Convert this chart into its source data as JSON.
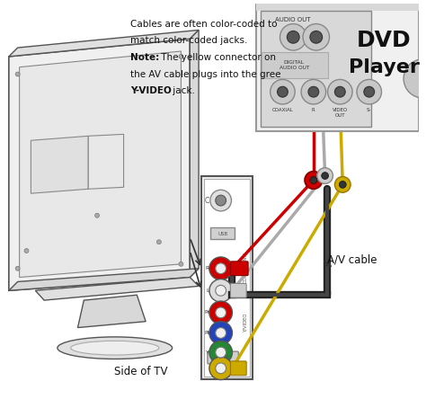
{
  "bg_color": "#ffffff",
  "text_note_lines": [
    "Cables are often color-coded to",
    "match color-coded jacks.",
    "Note: The yellow connector on",
    "the AV cable plugs into the gree",
    "Y-VIDEO jack."
  ],
  "dvd_title": "DVD",
  "dvd_subtitle": "Player",
  "label_av_cable": "A/V cable",
  "label_side_tv": "Side of TV",
  "cable_colors": {
    "red": "#cc0000",
    "white_cable": "#aaaaaa",
    "yellow": "#ccaa00",
    "green": "#228833",
    "blue": "#2244bb",
    "black": "#222222"
  }
}
